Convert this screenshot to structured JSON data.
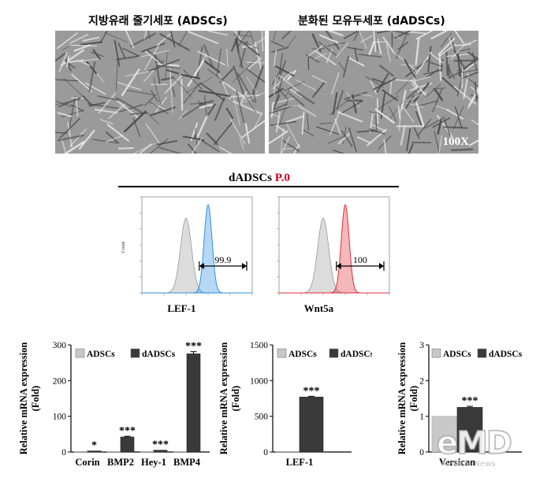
{
  "micrographs": {
    "left_title": "지방유래 줄기세포 (ADSCs)",
    "right_title": "분화된 모유두세포 (dADSCs)",
    "magnification": "100X"
  },
  "flow": {
    "title_prefix": "dADSCs",
    "title_suffix": "P.0",
    "title_suffix_color": "#d0021b",
    "y_label": "Count",
    "panels": [
      {
        "marker": "LEF-1",
        "percent": "99.9",
        "color": "#2f8fe0"
      },
      {
        "marker": "Wnt5a",
        "percent": "100",
        "color": "#e0303a"
      }
    ]
  },
  "watermark": {
    "logo": "eMD",
    "sub": "Medical News"
  },
  "chart_data": [
    {
      "type": "bar",
      "ylabel": "Relative mRNA expression (Fold)",
      "ylim": [
        0,
        300
      ],
      "yticks": [
        0,
        100,
        200,
        300
      ],
      "categories": [
        "Corin",
        "BMP2",
        "Hey-1",
        "BMP4"
      ],
      "series": [
        {
          "name": "ADSCs",
          "color": "#c8c8c8",
          "values": [
            1,
            1,
            1,
            1
          ]
        },
        {
          "name": "dADSCs",
          "color": "#3a3a3a",
          "values": [
            3,
            42,
            5,
            275
          ]
        }
      ],
      "significance": [
        "*",
        "***",
        "***",
        "***"
      ],
      "error": [
        0,
        2,
        0,
        6
      ]
    },
    {
      "type": "bar",
      "ylabel": "Relative mRNA expression (Fold)",
      "ylim": [
        0,
        1500
      ],
      "yticks": [
        0,
        500,
        1000,
        1500
      ],
      "categories": [
        "LEF-1"
      ],
      "series": [
        {
          "name": "ADSCs",
          "color": "#c8c8c8",
          "values": [
            1
          ]
        },
        {
          "name": "dADSCs",
          "color": "#3a3a3a",
          "values": [
            770
          ]
        }
      ],
      "significance": [
        "***"
      ],
      "error": [
        10
      ]
    },
    {
      "type": "bar",
      "ylabel": "Relative mRNA expression (Fold)",
      "ylim": [
        0,
        3
      ],
      "yticks": [
        0,
        1,
        2,
        3
      ],
      "categories": [
        "Versican"
      ],
      "series": [
        {
          "name": "ADSCs",
          "color": "#c8c8c8",
          "values": [
            1.0
          ]
        },
        {
          "name": "dADSCs",
          "color": "#3a3a3a",
          "values": [
            1.25
          ]
        }
      ],
      "significance": [
        "***"
      ],
      "error": [
        0.03
      ]
    }
  ]
}
